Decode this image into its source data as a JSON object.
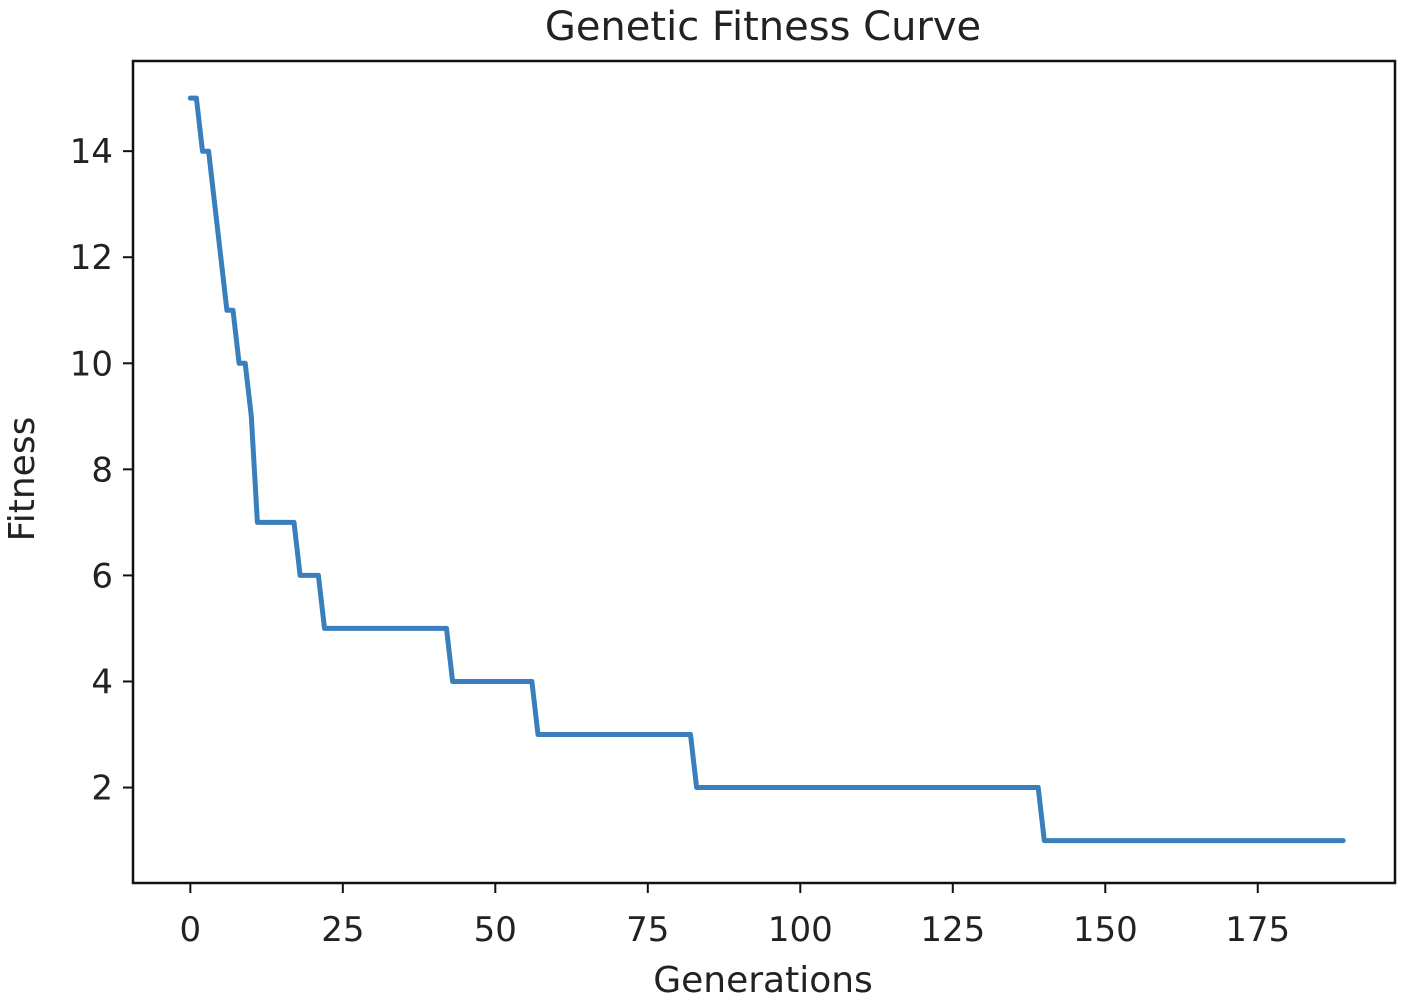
{
  "chart_data": {
    "type": "line",
    "title": "Genetic Fitness Curve",
    "xlabel": "Generations",
    "ylabel": "Fitness",
    "xlim": [
      -9.4,
      197.5
    ],
    "ylim": [
      0.2,
      15.7
    ],
    "xticks": [
      0,
      25,
      50,
      75,
      100,
      125,
      150,
      175
    ],
    "yticks": [
      2,
      4,
      6,
      8,
      10,
      12,
      14
    ],
    "grid": false,
    "legend": "none",
    "line_color": "#3a7fbd",
    "series": [
      {
        "x": [
          0,
          1,
          2,
          3,
          4,
          5,
          6,
          7,
          8,
          9,
          10,
          11,
          17,
          18,
          21,
          22,
          42,
          43,
          56,
          57,
          82,
          83,
          139,
          140,
          189
        ],
        "y": [
          15,
          15,
          14,
          14,
          13,
          12,
          11,
          11,
          10,
          10,
          9,
          7,
          7,
          6,
          6,
          5,
          5,
          4,
          4,
          3,
          3,
          2,
          2,
          1,
          1
        ]
      }
    ]
  }
}
